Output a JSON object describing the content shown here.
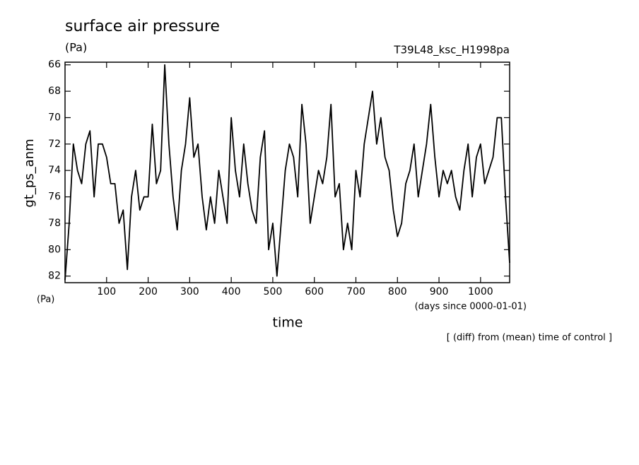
{
  "chart_data": {
    "type": "line",
    "title": "surface air pressure",
    "y_unit": "(Pa)",
    "run_label": "T39L48_ksc_H1998pa",
    "y_label": "gt_ps_anm",
    "x_corner_unit": "(Pa)",
    "x_unit": "(days since 0000-01-01)",
    "x_label": "time",
    "footer": "[ (diff) from (mean) time of control ]",
    "color": "#000000",
    "xlim": [
      0,
      1070
    ],
    "xticks": [
      100,
      200,
      300,
      400,
      500,
      600,
      700,
      800,
      900,
      1000
    ],
    "ylim": [
      82.5,
      65.8
    ],
    "yticks": [
      66,
      68,
      70,
      72,
      74,
      76,
      78,
      80,
      82
    ],
    "x": [
      0,
      10,
      20,
      30,
      40,
      50,
      60,
      70,
      80,
      90,
      100,
      110,
      120,
      130,
      140,
      150,
      160,
      170,
      180,
      190,
      200,
      210,
      220,
      230,
      240,
      250,
      260,
      270,
      280,
      290,
      300,
      310,
      320,
      330,
      340,
      350,
      360,
      370,
      380,
      390,
      400,
      410,
      420,
      430,
      440,
      450,
      460,
      470,
      480,
      490,
      500,
      510,
      520,
      530,
      540,
      550,
      560,
      570,
      580,
      590,
      600,
      610,
      620,
      630,
      640,
      650,
      660,
      670,
      680,
      690,
      700,
      710,
      720,
      730,
      740,
      750,
      760,
      770,
      780,
      790,
      800,
      810,
      820,
      830,
      840,
      850,
      860,
      870,
      880,
      890,
      900,
      910,
      920,
      930,
      940,
      950,
      960,
      970,
      980,
      990,
      1000,
      1010,
      1020,
      1030,
      1040,
      1050,
      1060,
      1070
    ],
    "values": [
      82.3,
      78,
      72,
      74,
      75,
      72,
      71,
      76,
      72,
      72,
      73,
      75,
      75,
      78,
      77,
      81.5,
      76,
      74,
      77,
      76,
      76,
      70.5,
      75,
      74,
      66,
      72,
      76,
      78.5,
      74,
      72,
      68.5,
      73,
      72,
      76,
      78.5,
      76,
      78,
      74,
      76,
      78,
      70,
      74,
      76,
      72,
      75,
      77,
      78,
      73,
      71,
      80,
      78,
      82,
      78,
      74,
      72,
      73,
      76,
      69,
      72,
      78,
      76,
      74,
      75,
      73,
      69,
      76,
      75,
      80,
      78,
      80,
      74,
      76,
      72,
      70,
      68,
      72,
      70,
      73,
      74,
      77,
      79,
      78,
      75,
      74,
      72,
      76,
      74,
      72,
      69,
      73,
      76,
      74,
      75,
      74,
      76,
      77,
      74,
      72,
      76,
      73,
      72,
      75,
      74,
      73,
      70,
      70,
      76,
      81
    ]
  }
}
